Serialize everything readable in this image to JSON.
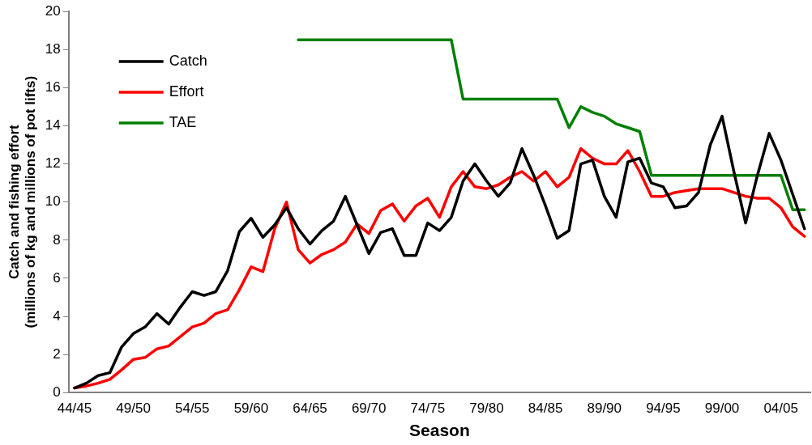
{
  "chart_data": {
    "type": "line",
    "xlabel": "Season",
    "ylabel": "Catch and fishing effort\n(millions of kg and millions of pot lifts)",
    "categories": [
      "44/45",
      null,
      null,
      null,
      null,
      "49/50",
      null,
      null,
      null,
      null,
      "54/55",
      null,
      null,
      null,
      null,
      "59/60",
      null,
      null,
      null,
      null,
      "64/65",
      null,
      null,
      null,
      null,
      "69/70",
      null,
      null,
      null,
      null,
      "74/75",
      null,
      null,
      null,
      null,
      "79/80",
      null,
      null,
      null,
      null,
      "84/85",
      null,
      null,
      null,
      null,
      "89/90",
      null,
      null,
      null,
      null,
      "94/95",
      null,
      null,
      null,
      null,
      "99/00",
      null,
      null,
      null,
      null,
      "04/05",
      null,
      null
    ],
    "series": [
      {
        "name": "Catch",
        "color": "#000000",
        "values": [
          0.25,
          0.5,
          0.9,
          1.05,
          2.4,
          3.1,
          3.45,
          4.15,
          3.6,
          4.5,
          5.3,
          5.1,
          5.3,
          6.4,
          8.45,
          9.15,
          8.15,
          8.8,
          9.7,
          8.6,
          7.8,
          8.5,
          9.0,
          10.3,
          8.8,
          7.3,
          8.4,
          8.6,
          7.2,
          7.2,
          8.9,
          8.5,
          9.2,
          11.1,
          12.0,
          11.1,
          10.3,
          11.0,
          12.8,
          11.4,
          9.8,
          8.1,
          8.5,
          12.0,
          12.2,
          10.3,
          9.2,
          12.1,
          12.3,
          11.0,
          10.8,
          9.7,
          9.8,
          10.5,
          13.0,
          14.5,
          11.6,
          8.9,
          11.4,
          13.6,
          12.2,
          10.4,
          8.6
        ]
      },
      {
        "name": "Effort",
        "color": "#ff0000",
        "values": [
          0.25,
          0.35,
          0.5,
          0.7,
          1.2,
          1.75,
          1.85,
          2.3,
          2.45,
          2.95,
          3.45,
          3.65,
          4.15,
          4.35,
          5.4,
          6.6,
          6.35,
          8.6,
          10.0,
          7.5,
          6.8,
          7.25,
          7.5,
          7.9,
          8.85,
          8.35,
          9.55,
          9.9,
          9.0,
          9.8,
          10.2,
          9.2,
          10.8,
          11.6,
          10.8,
          10.7,
          10.9,
          11.3,
          11.6,
          11.1,
          11.6,
          10.8,
          11.3,
          12.8,
          12.3,
          12.0,
          12.0,
          12.7,
          11.6,
          10.3,
          10.3,
          10.5,
          10.6,
          10.7,
          10.7,
          10.7,
          10.5,
          10.3,
          10.2,
          10.2,
          9.7,
          8.7,
          8.2
        ]
      },
      {
        "name": "TAE",
        "color": "#008000",
        "values": [
          null,
          null,
          null,
          null,
          null,
          null,
          null,
          null,
          null,
          null,
          null,
          null,
          null,
          null,
          null,
          null,
          null,
          null,
          null,
          18.5,
          18.5,
          18.5,
          18.5,
          18.5,
          18.5,
          18.5,
          18.5,
          18.5,
          18.5,
          18.5,
          18.5,
          18.5,
          18.5,
          15.4,
          15.4,
          15.4,
          15.4,
          15.4,
          15.4,
          15.4,
          15.4,
          15.4,
          13.9,
          15.0,
          14.7,
          14.5,
          14.1,
          13.9,
          13.7,
          11.4,
          11.4,
          11.4,
          11.4,
          11.4,
          11.4,
          11.4,
          11.4,
          11.4,
          11.4,
          11.4,
          11.4,
          9.6,
          9.6
        ]
      }
    ],
    "ylim": [
      0,
      20
    ],
    "yticks": [
      0,
      2,
      4,
      6,
      8,
      10,
      12,
      14,
      16,
      18,
      20
    ],
    "grid": false,
    "legend": "top left",
    "marker": "none",
    "line_style": "solid"
  }
}
